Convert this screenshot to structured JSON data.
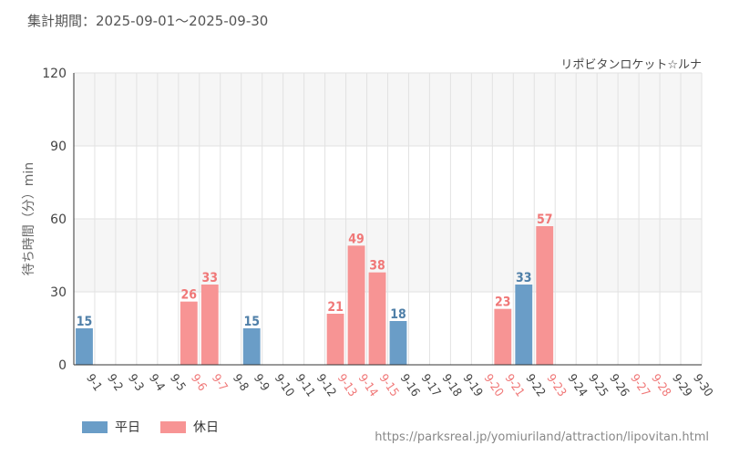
{
  "header": {
    "period": "集計期間：2025-09-01～2025-09-30",
    "source_url": "https://parksreal.jp/yomiuriland/attraction/lipovitan.html"
  },
  "colors": {
    "weekday": "#6a9dc7",
    "holiday": "#f79494",
    "weekday_label": "#4f7fa8",
    "holiday_label": "#f07878",
    "tick_weekday": "#444444"
  },
  "chart_data": {
    "type": "bar",
    "title": "リポビタンロケット☆ルナ",
    "ylabel": "待ち時間（分）min",
    "xlabel": "",
    "ylim": [
      0,
      120
    ],
    "yticks": [
      0,
      30,
      60,
      90,
      120
    ],
    "grid": true,
    "legend_position": "bottom-left",
    "categories": [
      "9-1",
      "9-2",
      "9-3",
      "9-4",
      "9-5",
      "9-6",
      "9-7",
      "9-8",
      "9-9",
      "9-10",
      "9-11",
      "9-12",
      "9-13",
      "9-14",
      "9-15",
      "9-16",
      "9-17",
      "9-18",
      "9-19",
      "9-20",
      "9-21",
      "9-22",
      "9-23",
      "9-24",
      "9-25",
      "9-26",
      "9-27",
      "9-28",
      "9-29",
      "9-30"
    ],
    "holiday_flags": [
      false,
      false,
      false,
      false,
      false,
      true,
      true,
      false,
      false,
      false,
      false,
      false,
      true,
      true,
      true,
      false,
      false,
      false,
      false,
      true,
      true,
      false,
      true,
      false,
      false,
      false,
      true,
      true,
      false,
      false
    ],
    "values": [
      15,
      null,
      null,
      null,
      null,
      26,
      33,
      null,
      15,
      null,
      null,
      null,
      21,
      49,
      38,
      18,
      null,
      null,
      null,
      null,
      23,
      33,
      57,
      null,
      null,
      null,
      null,
      null,
      null,
      null
    ],
    "series": [
      {
        "name": "平日",
        "color": "#6a9dc7"
      },
      {
        "name": "休日",
        "color": "#f79494"
      }
    ]
  }
}
